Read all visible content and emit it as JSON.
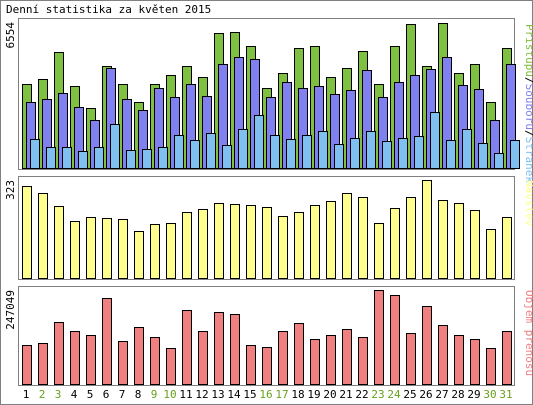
{
  "title": "Denní statistika za květen 2015",
  "chart_data": {
    "type": "bar",
    "categories": [
      "1",
      "2",
      "3",
      "4",
      "5",
      "6",
      "7",
      "8",
      "9",
      "10",
      "11",
      "12",
      "13",
      "14",
      "15",
      "16",
      "17",
      "18",
      "19",
      "20",
      "21",
      "22",
      "23",
      "24",
      "25",
      "26",
      "27",
      "28",
      "29",
      "30",
      "31"
    ],
    "weekend_days": [
      "2",
      "3",
      "9",
      "10",
      "16",
      "17",
      "23",
      "24",
      "30",
      "31"
    ],
    "colors": {
      "pristupu": "#80c040",
      "souboru": "#8080f0",
      "stranek": "#80c0f0",
      "navstev": "#ffff90",
      "objem": "#f08080",
      "weekday_label": "#000000",
      "weekend_label": "#68a018",
      "frame": "#808080"
    },
    "panels": [
      {
        "name": "requests",
        "ymax_label": "6554",
        "ymax": 6554,
        "legend": [
          "Přístupů",
          "Souborů",
          "Stránek"
        ],
        "legend_separator": "/",
        "series": [
          {
            "name": "Přístupů",
            "values": [
              3800,
              4000,
              5200,
              3700,
              2700,
              4600,
              3800,
              3000,
              3800,
              4200,
              4600,
              4100,
              6050,
              6100,
              5500,
              3600,
              4300,
              5400,
              5500,
              4100,
              4500,
              5250,
              3800,
              5500,
              6450,
              4600,
              6500,
              4300,
              4700,
              3000,
              5400
            ]
          },
          {
            "name": "Souborů",
            "values": [
              3000,
              3100,
              3400,
              2750,
              2200,
              4500,
              3100,
              2650,
              3600,
              3200,
              3800,
              3250,
              4700,
              5000,
              4900,
              3200,
              3900,
              3600,
              3700,
              3350,
              3500,
              4400,
              3200,
              3900,
              4200,
              4450,
              5000,
              3750,
              3550,
              2200,
              4700
            ]
          },
          {
            "name": "Stránek",
            "values": [
              1350,
              1000,
              1000,
              800,
              1000,
              2000,
              850,
              900,
              1000,
              1500,
              1300,
              1600,
              1050,
              1800,
              2400,
              1500,
              1350,
              1500,
              1700,
              1100,
              1400,
              1700,
              1250,
              1400,
              1450,
              2550,
              1300,
              1800,
              1150,
              700,
              1300
            ]
          }
        ]
      },
      {
        "name": "visits",
        "ymax_label": "323",
        "ymax": 323,
        "legend": [
          "Návštěv"
        ],
        "series": [
          {
            "name": "Návštěv",
            "values": [
              305,
              280,
              237,
              190,
              203,
              198,
              197,
              157,
              180,
              182,
              220,
              228,
              248,
              245,
              242,
              234,
              205,
              218,
              241,
              255,
              280,
              268,
              184,
              233,
              269,
              323,
              257,
              248,
              226,
              164,
              201
            ]
          }
        ]
      },
      {
        "name": "volume",
        "ymax_label": "247049",
        "ymax": 247049,
        "legend": [
          "Objem přenosu"
        ],
        "series": [
          {
            "name": "Objem přenosu",
            "values": [
              105000,
              110000,
              165000,
              140000,
              130000,
              225000,
              115000,
              150000,
              125000,
              95000,
              195000,
              140000,
              190000,
              185000,
              105000,
              100000,
              140000,
              160000,
              120000,
              130000,
              145000,
              125000,
              247049,
              235000,
              135000,
              205000,
              155000,
              130000,
              120000,
              95000,
              140000
            ]
          }
        ]
      }
    ]
  }
}
